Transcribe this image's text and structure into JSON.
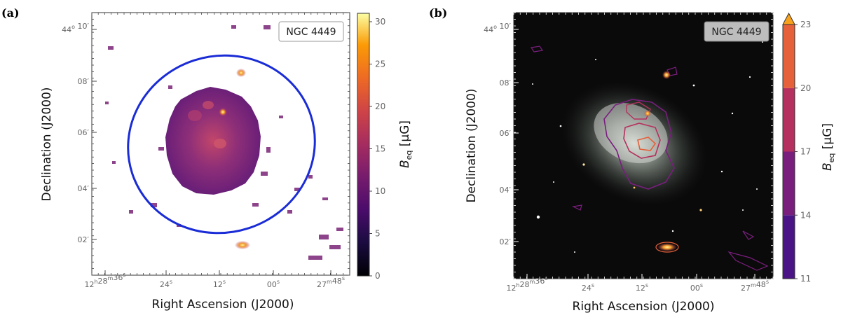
{
  "chart_data": [
    {
      "type": "heatmap",
      "panel_label": "(a)",
      "object_label": "NGC 4449",
      "xlabel": "Right Ascension (J2000)",
      "ylabel": "Declination (J2000)",
      "x_ticks": [
        {
          "hms": "12",
          "sup_h": "h",
          "min": "28",
          "sup_m": "m",
          "sec": "36",
          "sup_s": "s"
        },
        {
          "sec": "24",
          "sup_s": "s"
        },
        {
          "sec": "12",
          "sup_s": "s"
        },
        {
          "sec": "00",
          "sup_s": "s"
        },
        {
          "min": "27",
          "sup_m": "m",
          "sec": "48",
          "sup_s": "s"
        }
      ],
      "y_ticks": [
        {
          "deg": "44",
          "sup_d": "o",
          "min": "10",
          "sup_m": "′"
        },
        {
          "min": "08",
          "sup_m": "′"
        },
        {
          "min": "06",
          "sup_m": "′"
        },
        {
          "min": "04",
          "sup_m": "′"
        },
        {
          "min": "02",
          "sup_m": "′"
        }
      ],
      "colorbar": {
        "title": "B",
        "title_sub": "eq",
        "unit": "[μG]",
        "range": [
          0,
          30
        ],
        "ticks": [
          "0",
          "5",
          "10",
          "15",
          "20",
          "25",
          "30"
        ],
        "colormap": "inferno"
      },
      "overlay": "blue elliptical aperture around galaxy"
    },
    {
      "type": "heatmap",
      "panel_label": "(b)",
      "object_label": "NGC 4449",
      "xlabel": "Right Ascension (J2000)",
      "ylabel": "Declination (J2000)",
      "x_ticks": [
        {
          "hms": "12",
          "sup_h": "h",
          "min": "28",
          "sup_m": "m",
          "sec": "36",
          "sup_s": "s"
        },
        {
          "sec": "24",
          "sup_s": "s"
        },
        {
          "sec": "12",
          "sup_s": "s"
        },
        {
          "sec": "00",
          "sup_s": "s"
        },
        {
          "min": "27",
          "sup_m": "m",
          "sec": "48",
          "sup_s": "s"
        }
      ],
      "y_ticks": [
        {
          "deg": "44",
          "sup_d": "o",
          "min": "10",
          "sup_m": "′"
        },
        {
          "min": "08",
          "sup_m": "′"
        },
        {
          "min": "06",
          "sup_m": "′"
        },
        {
          "min": "04",
          "sup_m": "′"
        },
        {
          "min": "02",
          "sup_m": "′"
        }
      ],
      "colorbar": {
        "title": "B",
        "title_sub": "eq",
        "unit": "[μG]",
        "levels": [
          11,
          14,
          17,
          20,
          23
        ],
        "ticks": [
          "11",
          "14",
          "17",
          "20",
          "23"
        ],
        "colors": [
          "#4a1486",
          "#7a1e7e",
          "#b5305e",
          "#e6603a",
          "#f8a21c"
        ],
        "extend": "max"
      },
      "overlay": "B_eq contours on optical image"
    }
  ]
}
